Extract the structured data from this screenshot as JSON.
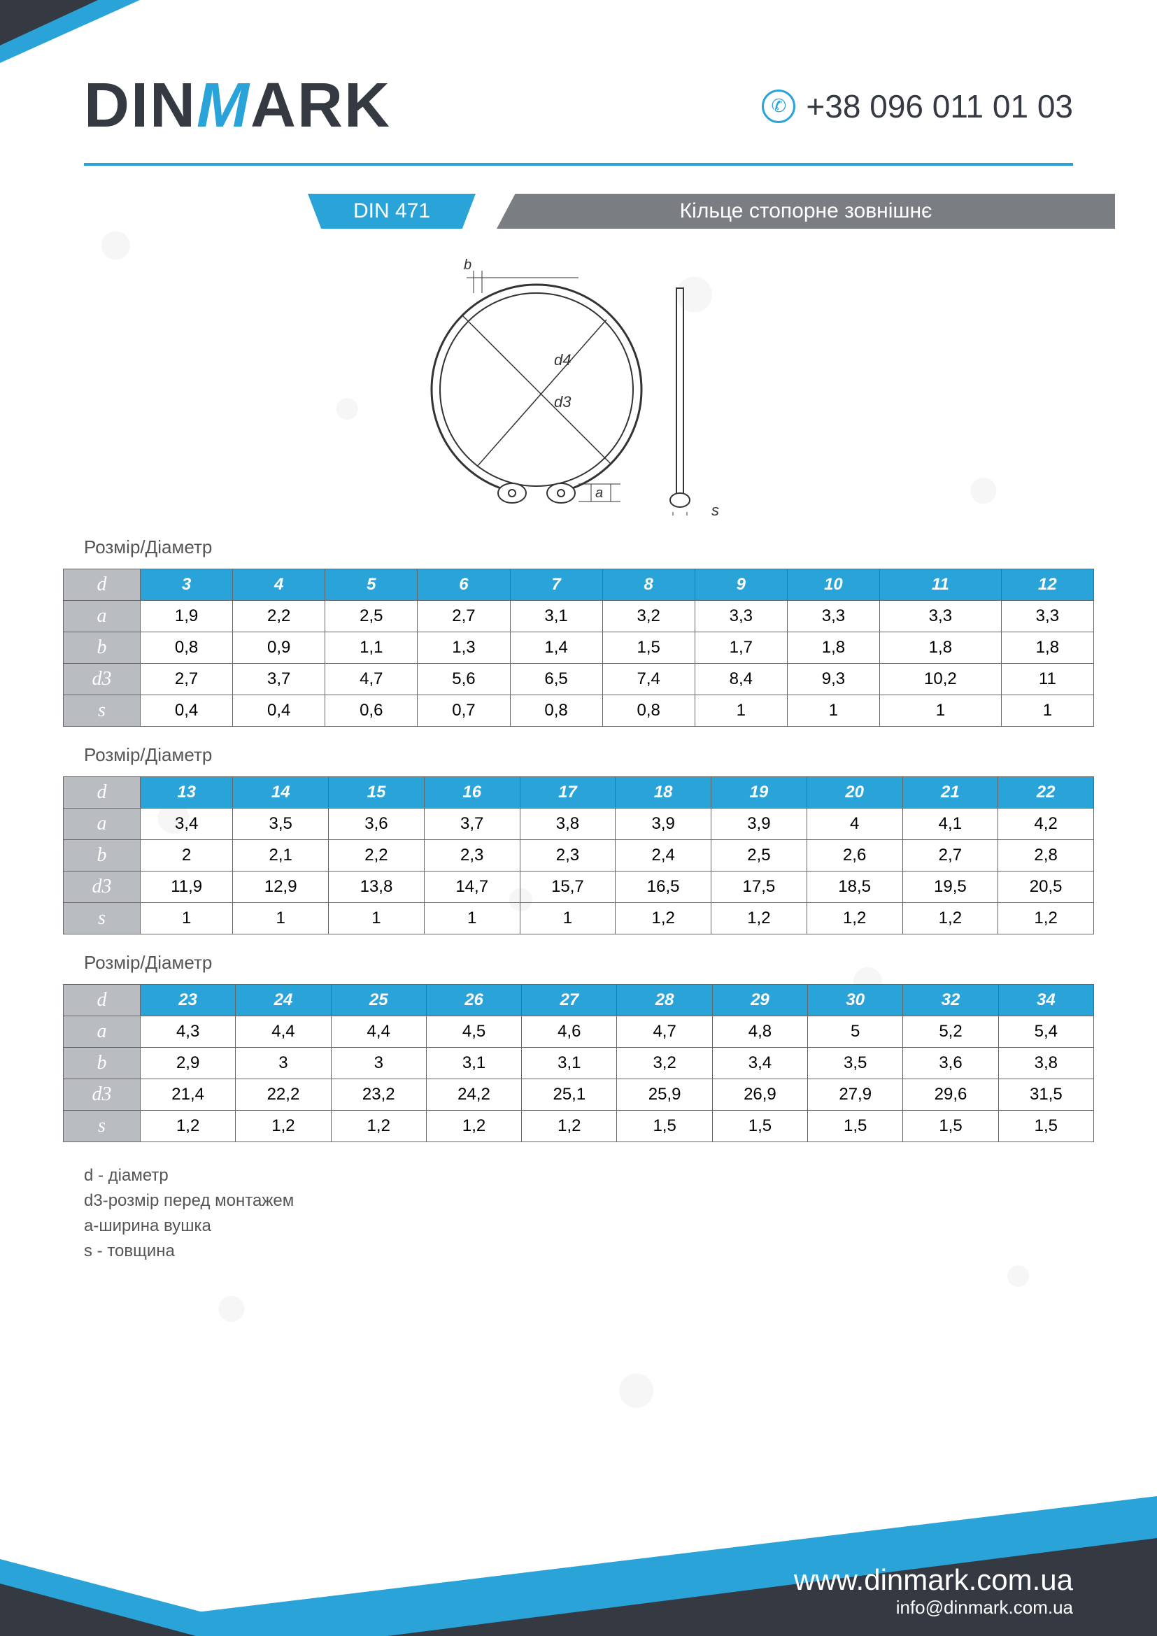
{
  "brand": {
    "part1": "DIN",
    "partM": "M",
    "part2": "ARK"
  },
  "phone": "+38 096 011 01 03",
  "title": {
    "code": "DIN 471",
    "name": "Кільце стопорне зовнішнє"
  },
  "section_label": "Розмір/Діаметр",
  "row_headers": [
    "d",
    "a",
    "b",
    "d3",
    "s"
  ],
  "tables": [
    {
      "d": [
        "3",
        "4",
        "5",
        "6",
        "7",
        "8",
        "9",
        "10",
        "11",
        "12"
      ],
      "a": [
        "1,9",
        "2,2",
        "2,5",
        "2,7",
        "3,1",
        "3,2",
        "3,3",
        "3,3",
        "3,3",
        "3,3"
      ],
      "b": [
        "0,8",
        "0,9",
        "1,1",
        "1,3",
        "1,4",
        "1,5",
        "1,7",
        "1,8",
        "1,8",
        "1,8"
      ],
      "d3": [
        "2,7",
        "3,7",
        "4,7",
        "5,6",
        "6,5",
        "7,4",
        "8,4",
        "9,3",
        "10,2",
        "11"
      ],
      "s": [
        "0,4",
        "0,4",
        "0,6",
        "0,7",
        "0,8",
        "0,8",
        "1",
        "1",
        "1",
        "1"
      ]
    },
    {
      "d": [
        "13",
        "14",
        "15",
        "16",
        "17",
        "18",
        "19",
        "20",
        "21",
        "22"
      ],
      "a": [
        "3,4",
        "3,5",
        "3,6",
        "3,7",
        "3,8",
        "3,9",
        "3,9",
        "4",
        "4,1",
        "4,2"
      ],
      "b": [
        "2",
        "2,1",
        "2,2",
        "2,3",
        "2,3",
        "2,4",
        "2,5",
        "2,6",
        "2,7",
        "2,8"
      ],
      "d3": [
        "11,9",
        "12,9",
        "13,8",
        "14,7",
        "15,7",
        "16,5",
        "17,5",
        "18,5",
        "19,5",
        "20,5"
      ],
      "s": [
        "1",
        "1",
        "1",
        "1",
        "1",
        "1,2",
        "1,2",
        "1,2",
        "1,2",
        "1,2"
      ]
    },
    {
      "d": [
        "23",
        "24",
        "25",
        "26",
        "27",
        "28",
        "29",
        "30",
        "32",
        "34"
      ],
      "a": [
        "4,3",
        "4,4",
        "4,4",
        "4,5",
        "4,6",
        "4,7",
        "4,8",
        "5",
        "5,2",
        "5,4"
      ],
      "b": [
        "2,9",
        "3",
        "3",
        "3,1",
        "3,1",
        "3,2",
        "3,4",
        "3,5",
        "3,6",
        "3,8"
      ],
      "d3": [
        "21,4",
        "22,2",
        "23,2",
        "24,2",
        "25,1",
        "25,9",
        "26,9",
        "27,9",
        "29,6",
        "31,5"
      ],
      "s": [
        "1,2",
        "1,2",
        "1,2",
        "1,2",
        "1,2",
        "1,5",
        "1,5",
        "1,5",
        "1,5",
        "1,5"
      ]
    }
  ],
  "legend": [
    "d - діаметр",
    "d3-розмір перед монтажем",
    "a-ширина вушка",
    "s - товщина"
  ],
  "footer": {
    "site": "www.dinmark.com.ua",
    "mail": "info@dinmark.com.ua"
  },
  "colors": {
    "accent": "#2aa3d9",
    "dark": "#353942",
    "gray_header": "#b9bcc0",
    "gray_bar": "#7a7d82",
    "border": "#666666",
    "text": "#555555"
  },
  "diagram": {
    "labels": {
      "d4": "d4",
      "d3": "d3",
      "b": "b",
      "a": "a",
      "s": "s"
    }
  }
}
